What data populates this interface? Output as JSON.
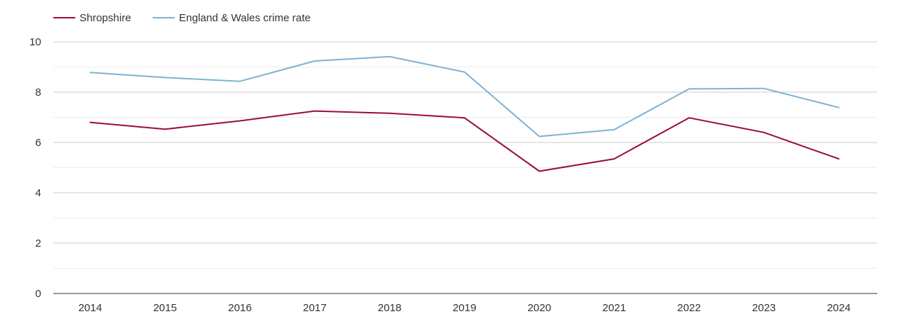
{
  "chart_data": {
    "type": "line",
    "title": "",
    "xlabel": "",
    "ylabel": "",
    "x": [
      2014,
      2015,
      2016,
      2017,
      2018,
      2019,
      2020,
      2021,
      2022,
      2023,
      2024
    ],
    "x_labels": [
      "2014",
      "2015",
      "2016",
      "2017",
      "2018",
      "2019",
      "2020",
      "2021",
      "2022",
      "2023",
      "2024"
    ],
    "ylim": [
      0,
      10
    ],
    "y_ticks": [
      0,
      2,
      4,
      6,
      8,
      10
    ],
    "y_tick_labels": [
      "0",
      "2",
      "4",
      "6",
      "8",
      "10"
    ],
    "y_minor_ticks": [
      1,
      3,
      5,
      7,
      9
    ],
    "grid": true,
    "legend_position": "top-left",
    "series": [
      {
        "name": "Shropshire",
        "color": "#9b0e34",
        "values": [
          6.8,
          6.53,
          6.86,
          7.25,
          7.16,
          6.98,
          4.86,
          5.35,
          6.98,
          6.4,
          5.35
        ]
      },
      {
        "name": "England & Wales crime rate",
        "color": "#7fb2d3",
        "values": [
          8.78,
          8.58,
          8.43,
          9.24,
          9.41,
          8.8,
          6.24,
          6.51,
          8.13,
          8.15,
          7.39
        ]
      }
    ]
  }
}
